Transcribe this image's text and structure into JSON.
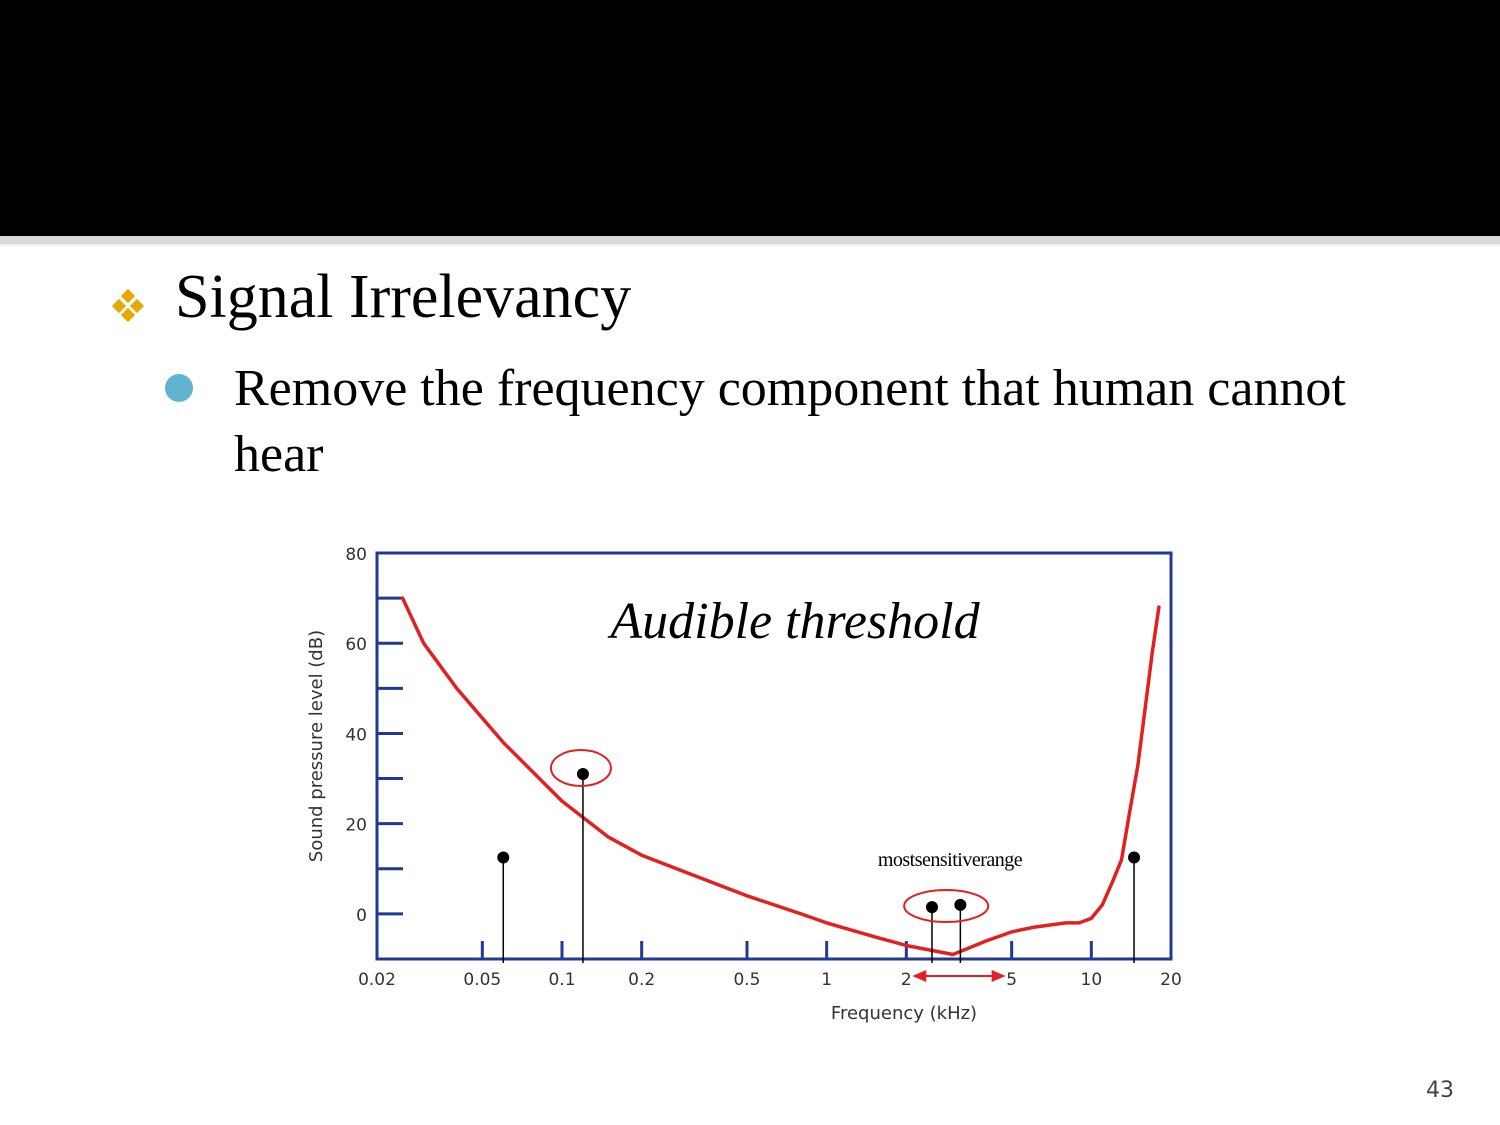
{
  "slide": {
    "heading": "Signal Irrelevancy",
    "bullet": "Remove the frequency component that human cannot hear",
    "page_number": "43"
  },
  "colors": {
    "header_bar": "#000000",
    "bullet_diamond": "#e8a800",
    "bullet_circle": "#61b4cf",
    "axis": "#1f3a93",
    "curve": "#e32020"
  },
  "chart_data": {
    "type": "line",
    "title": "Audible threshold",
    "xlabel": "Frequency (kHz)",
    "ylabel": "Sound pressure level (dB)",
    "x_scale": "log",
    "xlim": [
      0.02,
      20
    ],
    "ylim": [
      -10,
      80
    ],
    "x_ticks": [
      "0.02",
      "0.05",
      "0.1",
      "0.2",
      "0.5",
      "1",
      "2",
      "5",
      "10",
      "20"
    ],
    "y_ticks": [
      "80",
      "60",
      "40",
      "20",
      "0"
    ],
    "series": [
      {
        "x": [
          0.025,
          0.03,
          0.04,
          0.06,
          0.1,
          0.15,
          0.2,
          0.3,
          0.5,
          0.8,
          1.0,
          1.5,
          2.0,
          3.0,
          4.0,
          5.0,
          6.0,
          8.0,
          9.0,
          10.0,
          11.0,
          12.0,
          13.0,
          14.0,
          15.0,
          16.0,
          17.0,
          18.0
        ],
        "y": [
          70,
          60,
          50,
          38,
          25,
          17,
          13,
          9,
          4,
          0,
          -2,
          -5,
          -7,
          -9,
          -6,
          -4,
          -3,
          -2,
          -2,
          -1,
          2,
          7,
          12,
          23,
          33,
          46,
          58,
          68
        ]
      }
    ],
    "markers": [
      {
        "x": 0.06,
        "y": 12.5,
        "circled": false
      },
      {
        "x": 0.12,
        "y": 31,
        "circled": true
      },
      {
        "x": 2.5,
        "y": 1.5,
        "circled": true
      },
      {
        "x": 3.2,
        "y": 2,
        "circled": true
      },
      {
        "x": 14.5,
        "y": 12.5,
        "circled": false
      }
    ],
    "range_annotation": {
      "label": "mostsensitiverange",
      "from": 2.0,
      "to": 5.0
    }
  }
}
